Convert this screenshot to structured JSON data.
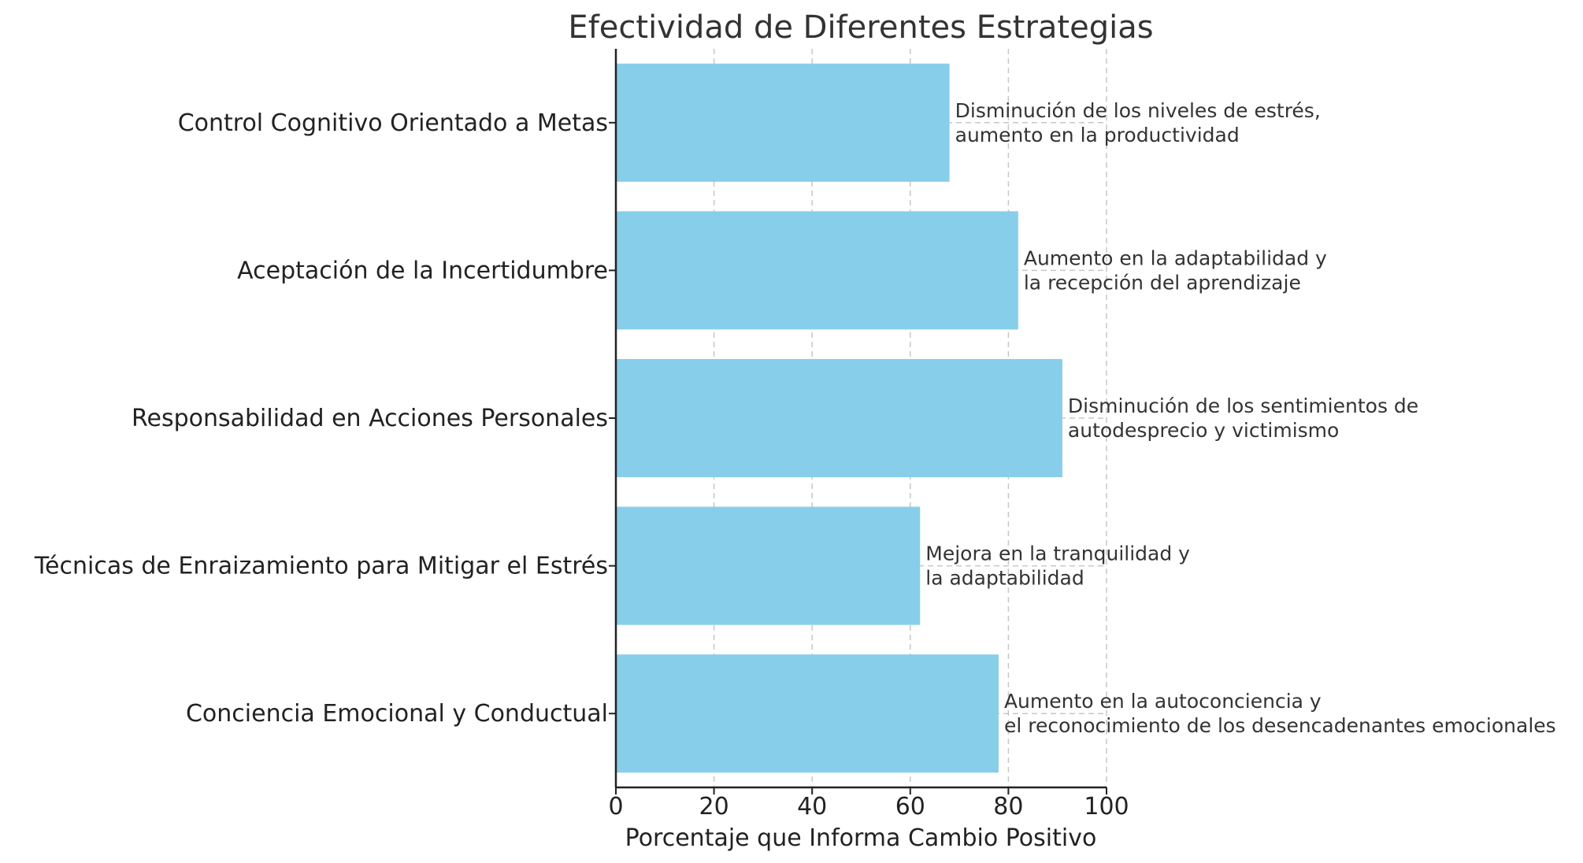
{
  "chart_data": {
    "type": "bar",
    "orientation": "horizontal",
    "title": "Efectividad de Diferentes Estrategias",
    "xlabel": "Porcentaje que Informa Cambio Positivo",
    "ylabel": "",
    "xlim": [
      0,
      100
    ],
    "xticks": [
      "0",
      "20",
      "40",
      "60",
      "80",
      "100"
    ],
    "grid": true,
    "bar_color": "#87CEEB",
    "categories": [
      "Control Cognitivo Orientado a Metas",
      "Aceptación de la Incertidumbre",
      "Responsabilidad en Acciones Personales",
      "Técnicas de Enraizamiento para Mitigar el Estrés",
      "Conciencia Emocional y Conductual"
    ],
    "values": [
      68,
      82,
      91,
      62,
      78
    ],
    "annotations": [
      [
        "Disminución de los niveles de estrés,",
        "aumento en la productividad"
      ],
      [
        "Aumento en la adaptabilidad y",
        "la recepción del aprendizaje"
      ],
      [
        "Disminución de los sentimientos de",
        "autodesprecio y victimismo"
      ],
      [
        "Mejora en la tranquilidad y",
        "la adaptabilidad"
      ],
      [
        "Aumento en la autoconciencia y",
        "el reconocimiento de los desencadenantes emocionales"
      ]
    ]
  }
}
